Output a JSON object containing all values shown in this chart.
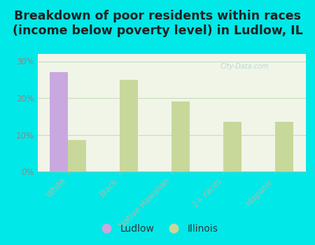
{
  "title": "Breakdown of poor residents within races\n(income below poverty level) in Ludlow, IL",
  "categories": [
    "White",
    "Black",
    "Native Hawaiian",
    "2+ races",
    "Hispanic"
  ],
  "ludlow_values": [
    27.0,
    0,
    0,
    0,
    0
  ],
  "illinois_values": [
    8.5,
    25.0,
    19.0,
    13.5,
    13.5
  ],
  "ludlow_color": "#c9a8e0",
  "illinois_color": "#c8d89a",
  "background_color": "#00e8e8",
  "plot_bg_top": "#f0f5e8",
  "plot_bg_bottom": "#d8ecd0",
  "ylim": [
    0,
    32
  ],
  "yticks": [
    0,
    10,
    20,
    30
  ],
  "ytick_labels": [
    "0%",
    "10%",
    "20%",
    "30%"
  ],
  "bar_width": 0.35,
  "watermark": "City-Data.com",
  "legend_ludlow": "Ludlow",
  "legend_illinois": "Illinois",
  "title_fontsize": 12.5,
  "tick_fontsize": 8.5,
  "legend_fontsize": 10,
  "grid_color": "#c8ddb8",
  "axis_color": "#aabbaa",
  "title_color": "#222222",
  "tick_color": "#888888"
}
